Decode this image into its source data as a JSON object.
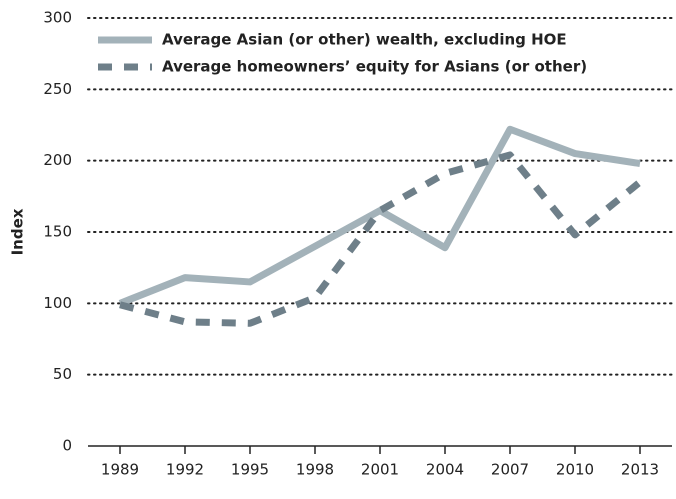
{
  "chart_data": {
    "type": "line",
    "y_label": "Index",
    "categories": [
      "1989",
      "1992",
      "1995",
      "1998",
      "2001",
      "2004",
      "2007",
      "2010",
      "2013"
    ],
    "series": [
      {
        "name": "Average Asian (or other) wealth, excluding HOE",
        "color": "#a3b2b9",
        "dash": false,
        "values": [
          100,
          118,
          115,
          140,
          165,
          139,
          222,
          205,
          198
        ]
      },
      {
        "name": "Average homeowners’ equity for Asians (or other)",
        "color": "#6e7f89",
        "dash": true,
        "values": [
          99,
          87,
          86,
          104,
          165,
          191,
          204,
          148,
          185
        ]
      }
    ],
    "ylim": [
      0,
      300
    ],
    "yticks": [
      0,
      50,
      100,
      150,
      200,
      250,
      300
    ],
    "grid": true,
    "legend": "upper left"
  }
}
